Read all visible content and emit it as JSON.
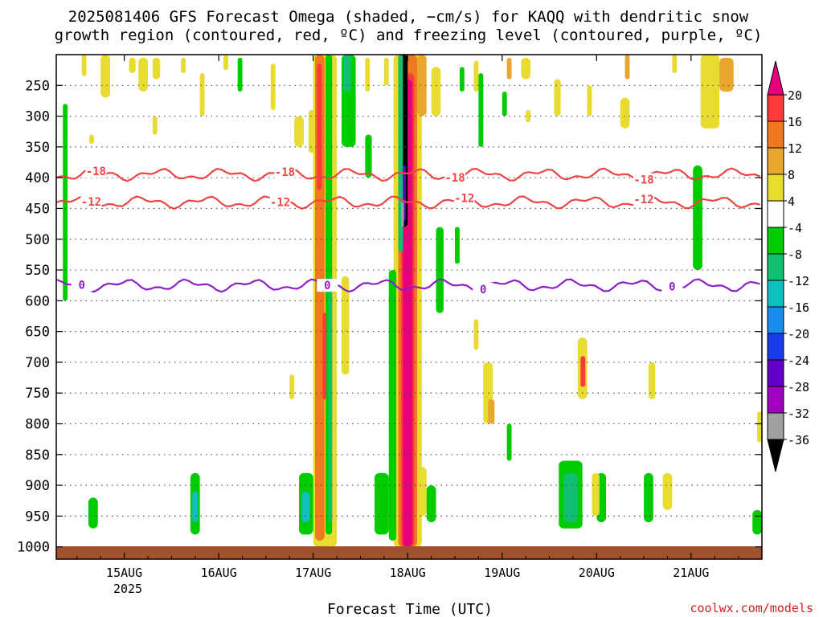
{
  "chart_data": {
    "type": "heatmap",
    "title_line1": "2025081406 GFS Forecast Omega (shaded, −cm/s) for KAQQ with dendritic snow",
    "title_line2": "growth region (contoured, red, ºC) and freezing level (contoured, purple, ºC)",
    "xlabel": "Forecast Time (UTC)",
    "credit": "coolwx.com/models",
    "x_ticks": [
      {
        "label": "15AUG",
        "day": 15
      },
      {
        "label": "16AUG",
        "day": 16
      },
      {
        "label": "17AUG",
        "day": 17
      },
      {
        "label": "18AUG",
        "day": 18
      },
      {
        "label": "19AUG",
        "day": 19
      },
      {
        "label": "20AUG",
        "day": 20
      },
      {
        "label": "21AUG",
        "day": 21
      }
    ],
    "x_year_label": "2025",
    "x_range_days": [
      14.28,
      21.75
    ],
    "y_ticks": [
      250,
      300,
      350,
      400,
      450,
      500,
      550,
      600,
      650,
      700,
      750,
      800,
      850,
      900,
      950,
      1000
    ],
    "y_range_hpa": [
      200,
      1020
    ],
    "colorbar": {
      "labels": [
        "20",
        "16",
        "12",
        "8",
        "4",
        "-4",
        "-8",
        "-12",
        "-16",
        "-20",
        "-24",
        "-28",
        "-32",
        "-36"
      ],
      "colors": [
        "#e8007a",
        "#ff3a3a",
        "#f07820",
        "#e8a830",
        "#e8dc30",
        "#ffffff",
        "#00cc00",
        "#10c070",
        "#10c0c0",
        "#1a8cf0",
        "#1a3ce8",
        "#6000c8",
        "#a000c0",
        "#a0a0a0",
        "#000000"
      ]
    },
    "contours": [
      {
        "label": "-18",
        "color": "#ee4444",
        "level_hpa": 395,
        "label_days": [
          14.7,
          16.7,
          18.5,
          20.5
        ]
      },
      {
        "label": "-12",
        "color": "#ee4444",
        "level_hpa": 440,
        "label_days": [
          14.65,
          16.65,
          18.6,
          20.5
        ]
      },
      {
        "label": "0",
        "color": "#8e20c8",
        "level_hpa": 575,
        "label_days": [
          14.55,
          17.15,
          18.8,
          20.8
        ]
      }
    ],
    "ground_color": "#a0522d"
  }
}
